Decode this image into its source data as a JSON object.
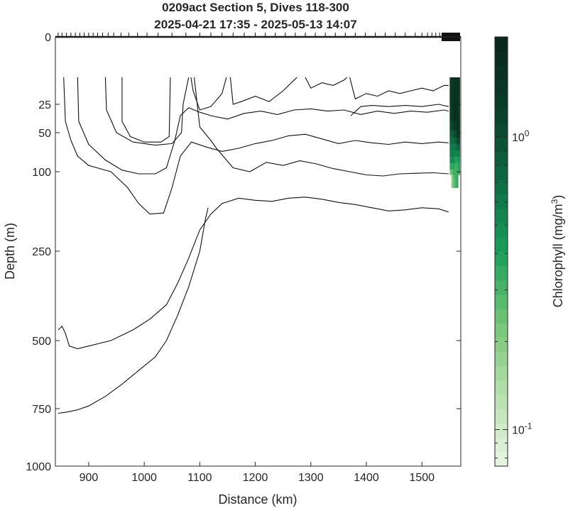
{
  "chart_data": {
    "type": "heatmap",
    "title": "0209act Section 5, Dives 118-300",
    "subtitle": "2025-04-21 17:35 - 2025-05-13 14:07",
    "xlabel": "Distance (km)",
    "ylabel": "Depth (m)",
    "xlim": [
      840,
      1570
    ],
    "x_ticks": [
      900,
      1000,
      1100,
      1200,
      1300,
      1400,
      1500
    ],
    "y_ticks": [
      0,
      25,
      50,
      100,
      250,
      500,
      750,
      1000
    ],
    "y_scale": "piecewise (0 pinned top, 25–1000 compressed, deeper section stretched)",
    "colorbar": {
      "label": "Chlorophyll (mg/m",
      "label_sup": "3",
      "label_end": ")",
      "scale": "log",
      "range": [
        0.075,
        2.2
      ],
      "tick_base": "10",
      "ticks": [
        {
          "value": 1,
          "exp": "0"
        },
        {
          "value": 0.1,
          "exp": "-1"
        }
      ],
      "colormap": [
        "#e8f7e4",
        "#b7e0ad",
        "#74c476",
        "#1b9e5a",
        "#0e6b43",
        "#0a3d29",
        "#08261a"
      ]
    },
    "chlorophyll_patch": {
      "x_range": [
        1550,
        1568
      ],
      "depth_range": [
        15,
        130
      ],
      "note_values": [
        {
          "x": 1552,
          "depth": 20,
          "value": 1.4
        },
        {
          "x": 1560,
          "depth": 30,
          "value": 2.0
        },
        {
          "x": 1566,
          "depth": 45,
          "value": 1.6
        },
        {
          "x": 1556,
          "depth": 70,
          "value": 0.6
        },
        {
          "x": 1562,
          "depth": 95,
          "value": 0.3
        },
        {
          "x": 1552,
          "depth": 115,
          "value": 0.15
        }
      ]
    },
    "dive_marker_x": [
      845,
      852,
      860,
      868,
      876,
      884,
      892,
      900,
      908,
      916,
      925,
      935,
      945,
      958,
      972,
      988,
      1005,
      1025,
      1050,
      1075,
      1100,
      1120,
      1140,
      1160,
      1180,
      1200,
      1218,
      1236,
      1254,
      1272,
      1290,
      1308,
      1326,
      1344,
      1362,
      1380,
      1398,
      1416,
      1434,
      1452,
      1470,
      1488,
      1500,
      1510,
      1518,
      1525,
      1532,
      1538,
      1543
    ],
    "contours": [
      {
        "name": "c1",
        "points": [
          [
            960,
            15
          ],
          [
            960,
            40
          ],
          [
            975,
            55
          ],
          [
            1000,
            62
          ],
          [
            1030,
            62
          ],
          [
            1045,
            55
          ],
          [
            1047,
            15
          ]
        ]
      },
      {
        "name": "c2",
        "points": [
          [
            930,
            15
          ],
          [
            932,
            30
          ],
          [
            950,
            50
          ],
          [
            980,
            62
          ],
          [
            1020,
            66
          ],
          [
            1050,
            64
          ],
          [
            1067,
            50
          ],
          [
            1070,
            25
          ],
          [
            1075,
            20
          ],
          [
            1080,
            15
          ]
        ]
      },
      {
        "name": "c3",
        "points": [
          [
            1084,
            15
          ],
          [
            1088,
            20
          ],
          [
            1100,
            30
          ],
          [
            1120,
            27
          ],
          [
            1140,
            21
          ],
          [
            1148,
            15
          ]
        ]
      },
      {
        "name": "c4",
        "points": [
          [
            1155,
            15
          ],
          [
            1160,
            25
          ],
          [
            1175,
            24
          ],
          [
            1200,
            22
          ],
          [
            1225,
            24
          ],
          [
            1250,
            20
          ],
          [
            1270,
            16
          ],
          [
            1275,
            15
          ]
        ]
      },
      {
        "name": "c5",
        "points": [
          [
            1290,
            15
          ],
          [
            1300,
            19
          ],
          [
            1320,
            17
          ],
          [
            1340,
            18
          ],
          [
            1360,
            16
          ],
          [
            1365,
            15
          ]
        ]
      },
      {
        "name": "c6",
        "points": [
          [
            1370,
            15
          ],
          [
            1380,
            23
          ],
          [
            1400,
            21
          ],
          [
            1420,
            22
          ],
          [
            1440,
            20
          ],
          [
            1460,
            21
          ],
          [
            1480,
            20
          ],
          [
            1500,
            19
          ],
          [
            1520,
            20
          ],
          [
            1540,
            18
          ],
          [
            1548,
            18
          ]
        ]
      },
      {
        "name": "c7",
        "points": [
          [
            1372,
            35
          ],
          [
            1390,
            27
          ],
          [
            1410,
            26
          ],
          [
            1440,
            27
          ],
          [
            1470,
            26
          ],
          [
            1500,
            27
          ],
          [
            1530,
            25
          ],
          [
            1548,
            27
          ]
        ]
      },
      {
        "name": "c8",
        "points": [
          [
            880,
            15
          ],
          [
            882,
            40
          ],
          [
            900,
            65
          ],
          [
            930,
            85
          ],
          [
            960,
            98
          ],
          [
            990,
            104
          ],
          [
            1020,
            104
          ],
          [
            1040,
            95
          ],
          [
            1055,
            60
          ],
          [
            1065,
            35
          ],
          [
            1080,
            28
          ],
          [
            1100,
            32
          ],
          [
            1120,
            35
          ],
          [
            1150,
            38
          ],
          [
            1180,
            33
          ],
          [
            1210,
            31
          ],
          [
            1240,
            34
          ],
          [
            1270,
            30
          ],
          [
            1300,
            29
          ],
          [
            1330,
            31
          ],
          [
            1360,
            30
          ],
          [
            1390,
            34
          ],
          [
            1420,
            31
          ],
          [
            1450,
            33
          ],
          [
            1480,
            31
          ],
          [
            1510,
            32
          ],
          [
            1540,
            30
          ],
          [
            1548,
            31
          ]
        ]
      },
      {
        "name": "c9",
        "points": [
          [
            855,
            15
          ],
          [
            858,
            40
          ],
          [
            868,
            60
          ],
          [
            880,
            80
          ],
          [
            900,
            92
          ],
          [
            940,
            100
          ],
          [
            970,
            130
          ],
          [
            990,
            160
          ],
          [
            1010,
            180
          ],
          [
            1035,
            178
          ],
          [
            1050,
            130
          ],
          [
            1065,
            80
          ],
          [
            1085,
            62
          ],
          [
            1110,
            68
          ],
          [
            1140,
            74
          ],
          [
            1170,
            70
          ],
          [
            1200,
            64
          ],
          [
            1230,
            60
          ],
          [
            1260,
            54
          ],
          [
            1290,
            52
          ],
          [
            1320,
            58
          ],
          [
            1350,
            64
          ],
          [
            1380,
            60
          ],
          [
            1410,
            63
          ],
          [
            1440,
            65
          ],
          [
            1470,
            62
          ],
          [
            1500,
            64
          ],
          [
            1530,
            62
          ],
          [
            1548,
            63
          ]
        ]
      },
      {
        "name": "c10",
        "points": [
          [
            1090,
            15
          ],
          [
            1100,
            45
          ],
          [
            1120,
            60
          ],
          [
            1130,
            70
          ],
          [
            1160,
            95
          ],
          [
            1190,
            100
          ],
          [
            1220,
            88
          ],
          [
            1250,
            92
          ],
          [
            1280,
            86
          ],
          [
            1310,
            90
          ],
          [
            1340,
            96
          ],
          [
            1370,
            100
          ],
          [
            1400,
            106
          ],
          [
            1430,
            108
          ],
          [
            1460,
            104
          ],
          [
            1490,
            103
          ],
          [
            1520,
            102
          ],
          [
            1548,
            104
          ]
        ]
      },
      {
        "name": "c11",
        "points": [
          [
            845,
            470
          ],
          [
            852,
            460
          ],
          [
            858,
            480
          ],
          [
            865,
            520
          ],
          [
            880,
            530
          ],
          [
            900,
            520
          ],
          [
            940,
            500
          ],
          [
            980,
            470
          ],
          [
            1010,
            440
          ],
          [
            1040,
            400
          ],
          [
            1060,
            340
          ],
          [
            1080,
            270
          ],
          [
            1100,
            210
          ],
          [
            1120,
            180
          ],
          [
            1140,
            160
          ],
          [
            1170,
            150
          ],
          [
            1200,
            154
          ],
          [
            1230,
            156
          ],
          [
            1260,
            150
          ],
          [
            1290,
            148
          ],
          [
            1320,
            152
          ],
          [
            1350,
            158
          ],
          [
            1380,
            162
          ],
          [
            1410,
            168
          ],
          [
            1440,
            174
          ],
          [
            1470,
            172
          ],
          [
            1500,
            168
          ],
          [
            1530,
            170
          ],
          [
            1548,
            176
          ]
        ]
      },
      {
        "name": "c12",
        "points": [
          [
            845,
            770
          ],
          [
            860,
            765
          ],
          [
            880,
            755
          ],
          [
            900,
            740
          ],
          [
            930,
            705
          ],
          [
            960,
            660
          ],
          [
            990,
            610
          ],
          [
            1020,
            560
          ],
          [
            1040,
            500
          ],
          [
            1060,
            430
          ],
          [
            1080,
            350
          ],
          [
            1100,
            250
          ],
          [
            1110,
            190
          ],
          [
            1115,
            168
          ]
        ]
      }
    ]
  }
}
